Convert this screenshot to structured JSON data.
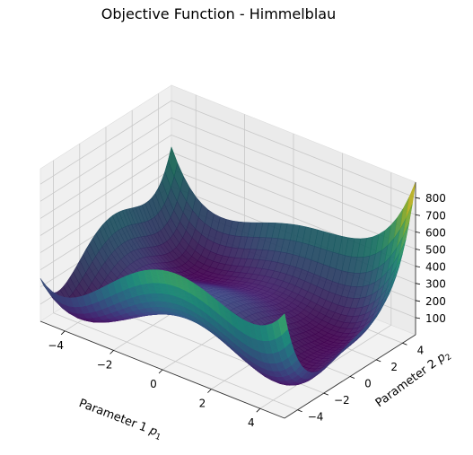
{
  "chart_data": {
    "type": "surface3d",
    "title": "Objective Function - Himmelblau",
    "xlabel": "Parameter 1 p1",
    "ylabel": "Parameter 2 p2",
    "zlabel": "",
    "function": "(x^2 + y - 11)^2 + (x + y^2 - 7)^2",
    "xlim": [
      -5,
      5
    ],
    "ylim": [
      -5,
      5
    ],
    "zlim": [
      0,
      890
    ],
    "x_ticks": [
      "−4",
      "−2",
      "0",
      "2",
      "4"
    ],
    "y_ticks": [
      "−4",
      "−2",
      "0",
      "2",
      "4"
    ],
    "z_ticks": [
      "100",
      "200",
      "300",
      "400",
      "500",
      "600",
      "700",
      "800"
    ],
    "colormap": "viridis",
    "grid": true,
    "pane_color": "#f2f2f2",
    "minima": [
      {
        "x": 3.0,
        "y": 2.0,
        "z": 0
      },
      {
        "x": -2.805,
        "y": 3.131,
        "z": 0
      },
      {
        "x": -3.779,
        "y": -3.283,
        "z": 0
      },
      {
        "x": 3.584,
        "y": -1.848,
        "z": 0
      }
    ]
  }
}
